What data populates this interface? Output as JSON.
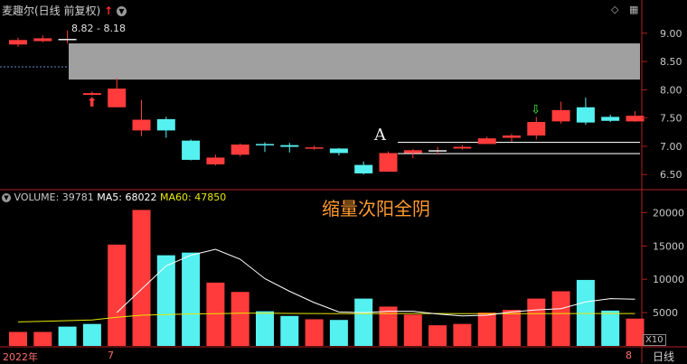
{
  "header": {
    "title": "麦趣尔(日线 前复权)",
    "up_arrow": "↑",
    "dropdown_icon": "chevron-down-icon"
  },
  "toolbar_icons": [
    "diamond-icon",
    "grid-icon"
  ],
  "range_label": "8.82 - 8.18",
  "annotation_a": "A",
  "annotation_text": "缩量次阳全阴",
  "volume_header": {
    "volume": "VOLUME: 39781",
    "ma5": "MA5: 68022",
    "ma60": "MA60: 47850"
  },
  "x_axis": {
    "year_label": "2022年",
    "month_label": "7",
    "month8_label": "8",
    "zoom_label": "X10",
    "period_label": "日线"
  },
  "colors": {
    "up": "#ff3b3b",
    "down": "#55f0f0",
    "ma5": "#ffffff",
    "ma60": "#e8e800",
    "gap_box": "#a0a0a0"
  },
  "chart_data": [
    {
      "type": "candlestick",
      "title": "麦趣尔(日线 前复权)",
      "y_ticks": [
        "9.00",
        "8.50",
        "8.00",
        "7.50",
        "7.00",
        "6.50"
      ],
      "ylim": [
        6.28,
        9.3
      ],
      "gap_box": [
        8.18,
        8.82
      ],
      "horizontal_lines": [
        6.87,
        7.07
      ],
      "candles": [
        {
          "o": 8.8,
          "c": 8.88,
          "h": 8.92,
          "l": 8.76
        },
        {
          "o": 8.86,
          "c": 8.91,
          "h": 8.96,
          "l": 8.84
        },
        {
          "o": 8.9,
          "c": 8.9,
          "h": 9.05,
          "l": 8.82
        },
        {
          "o": 7.91,
          "c": 7.94,
          "h": 7.97,
          "l": 7.9
        },
        {
          "o": 7.69,
          "c": 8.02,
          "h": 8.21,
          "l": 7.69
        },
        {
          "o": 7.28,
          "c": 7.47,
          "h": 7.82,
          "l": 7.18
        },
        {
          "o": 7.48,
          "c": 7.28,
          "h": 7.52,
          "l": 7.15
        },
        {
          "o": 7.1,
          "c": 6.76,
          "h": 7.12,
          "l": 6.75
        },
        {
          "o": 6.68,
          "c": 6.8,
          "h": 6.85,
          "l": 6.66
        },
        {
          "o": 6.85,
          "c": 7.03,
          "h": 7.05,
          "l": 6.82
        },
        {
          "o": 7.04,
          "c": 7.02,
          "h": 7.07,
          "l": 6.9
        },
        {
          "o": 7.02,
          "c": 6.99,
          "h": 7.06,
          "l": 6.89
        },
        {
          "o": 6.97,
          "c": 6.98,
          "h": 7.01,
          "l": 6.94
        },
        {
          "o": 6.96,
          "c": 6.88,
          "h": 6.97,
          "l": 6.84
        },
        {
          "o": 6.67,
          "c": 6.52,
          "h": 6.73,
          "l": 6.5
        },
        {
          "o": 6.55,
          "c": 6.88,
          "h": 6.91,
          "l": 6.55
        },
        {
          "o": 6.88,
          "c": 6.93,
          "h": 6.95,
          "l": 6.79
        },
        {
          "o": 6.93,
          "c": 6.93,
          "h": 6.99,
          "l": 6.85
        },
        {
          "o": 6.96,
          "c": 6.99,
          "h": 7.02,
          "l": 6.94
        },
        {
          "o": 7.04,
          "c": 7.14,
          "h": 7.17,
          "l": 7.04
        },
        {
          "o": 7.15,
          "c": 7.19,
          "h": 7.22,
          "l": 7.08
        },
        {
          "o": 7.19,
          "c": 7.43,
          "h": 7.52,
          "l": 7.12
        },
        {
          "o": 7.44,
          "c": 7.64,
          "h": 7.79,
          "l": 7.4
        },
        {
          "o": 7.69,
          "c": 7.42,
          "h": 7.86,
          "l": 7.38
        },
        {
          "o": 7.52,
          "c": 7.45,
          "h": 7.56,
          "l": 7.43
        },
        {
          "o": 7.44,
          "c": 7.54,
          "h": 7.62,
          "l": 7.43
        }
      ]
    },
    {
      "type": "bar",
      "title": "VOLUME",
      "y_ticks": [
        "20000",
        "15000",
        "10000",
        "5000"
      ],
      "ylim": [
        0,
        21000
      ],
      "values": [
        2100,
        2100,
        2900,
        3300,
        15200,
        20400,
        13600,
        14000,
        9500,
        8100,
        5200,
        4500,
        4000,
        3900,
        7100,
        5900,
        4700,
        3100,
        3300,
        5000,
        5400,
        7100,
        8200,
        9900,
        5300,
        4100
      ],
      "up": [
        true,
        true,
        false,
        false,
        true,
        true,
        false,
        false,
        true,
        true,
        false,
        false,
        true,
        false,
        false,
        true,
        true,
        true,
        true,
        true,
        true,
        true,
        true,
        false,
        false,
        true
      ],
      "ma5": [
        null,
        null,
        null,
        null,
        5000,
        8500,
        12000,
        13600,
        14500,
        13000,
        10100,
        8200,
        6500,
        5100,
        5000,
        5200,
        5200,
        4800,
        4500,
        4600,
        5100,
        5400,
        5600,
        6600,
        7100,
        7000
      ],
      "ma60": [
        3600,
        3700,
        3800,
        3900,
        4300,
        4600,
        4700,
        4800,
        4850,
        4900,
        4900,
        4880,
        4860,
        4850,
        4850,
        4860,
        4860,
        4860,
        4850,
        4850,
        4850,
        4850,
        4860,
        4870,
        4870,
        4860
      ]
    }
  ]
}
